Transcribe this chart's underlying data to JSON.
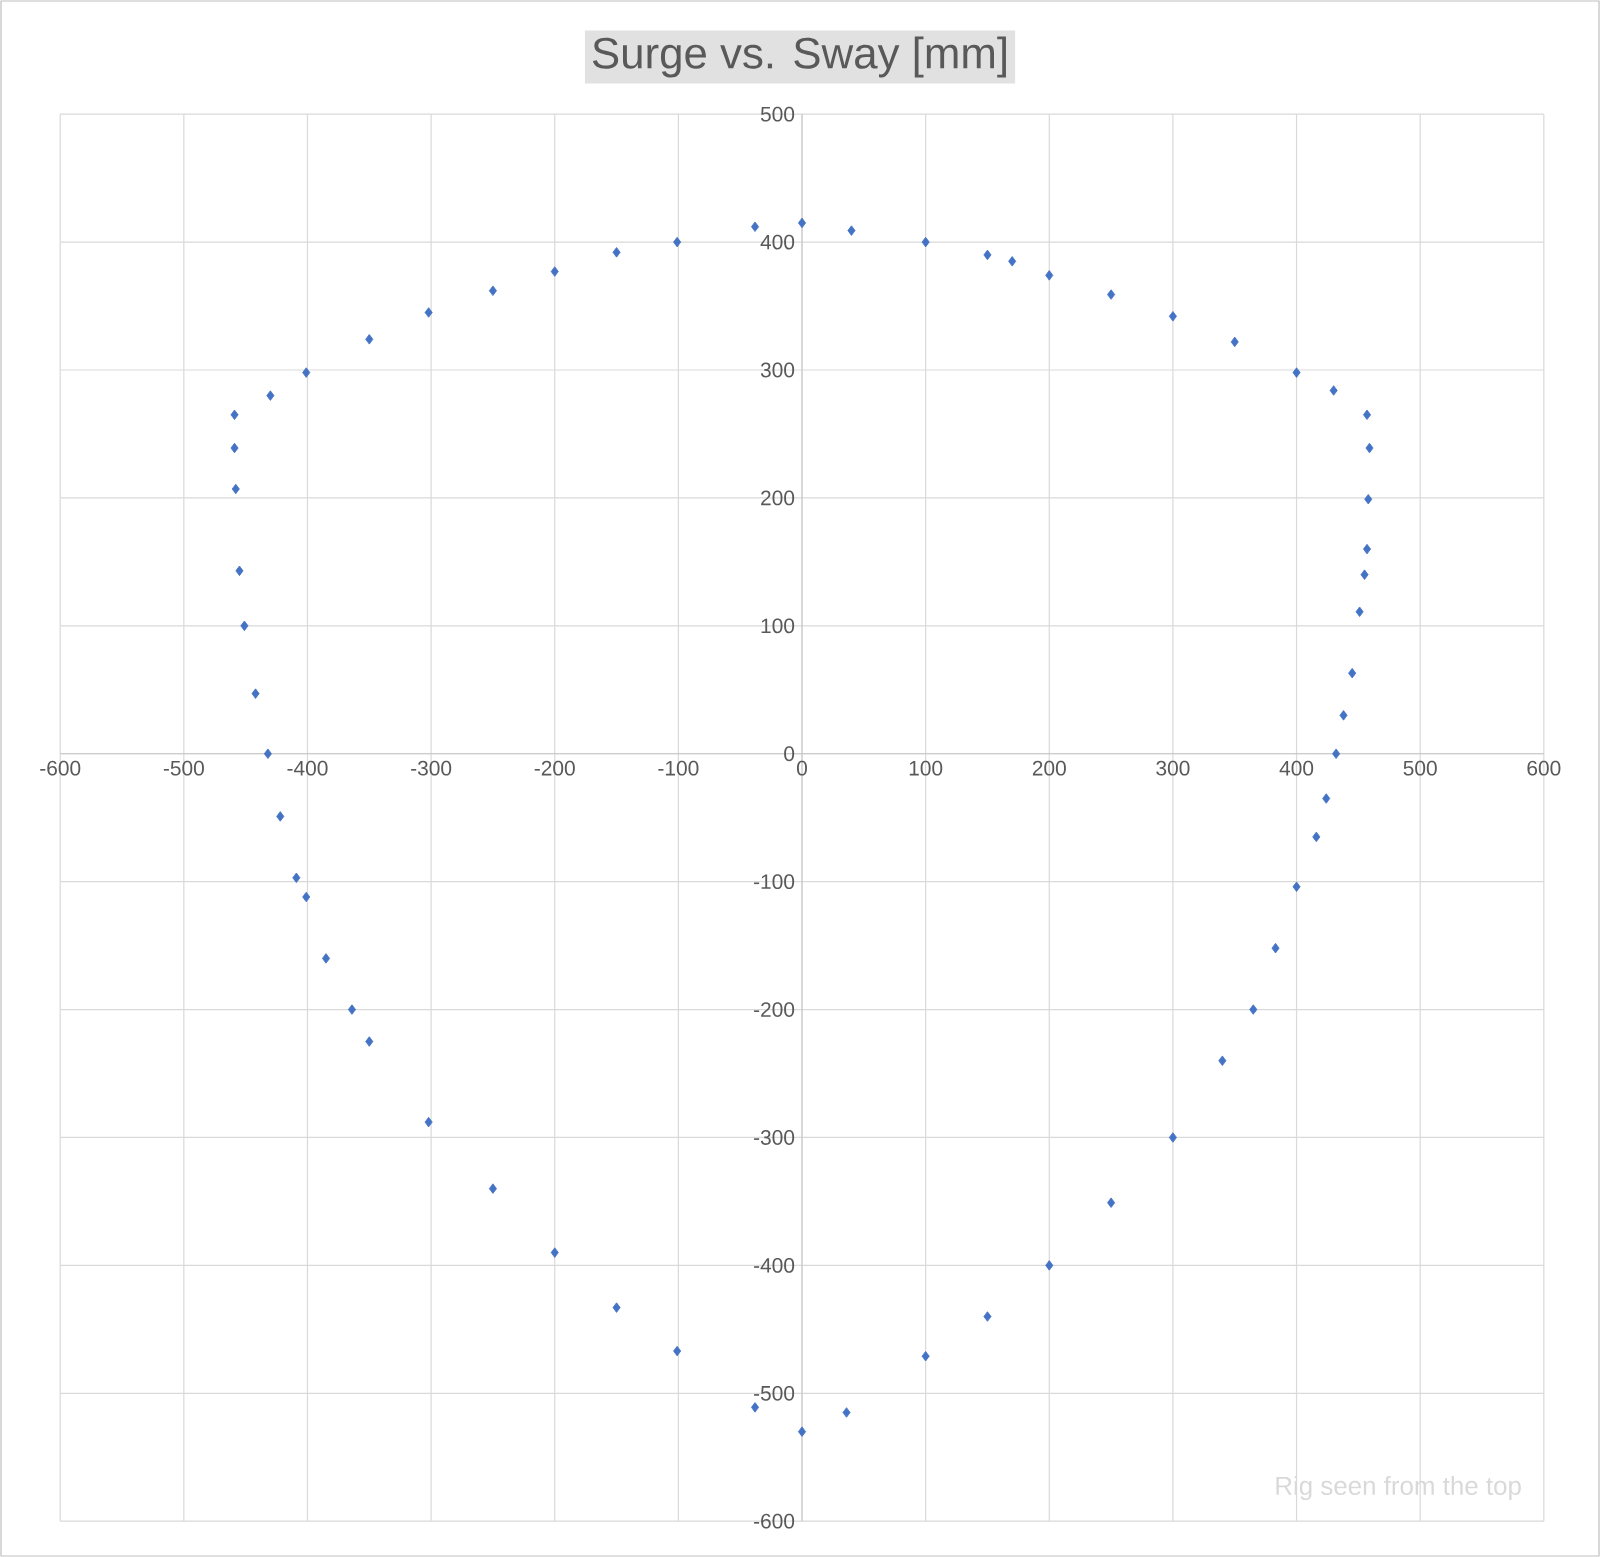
{
  "chart_data": {
    "type": "scatter",
    "title": "Surge vs. Sway [mm]",
    "x": [
      0,
      40,
      100,
      150,
      170,
      200,
      250,
      300,
      350,
      400,
      430,
      457,
      459,
      458,
      457,
      455,
      451,
      445,
      438,
      432,
      424,
      416,
      400,
      383,
      365,
      340,
      300,
      250,
      200,
      150,
      100,
      36,
      0,
      -38,
      -101,
      -150,
      -200,
      -250,
      -302,
      -350,
      -364,
      -385,
      -401,
      -409,
      -422,
      -432,
      -442,
      -451,
      -455,
      -458,
      -459,
      -459,
      -430,
      -401,
      -350,
      -302,
      -250,
      -200,
      -150,
      -101,
      -38
    ],
    "series": [
      {
        "color": "#4472c4",
        "values": [
          415,
          409,
          400,
          390,
          385,
          374,
          359,
          342,
          322,
          298,
          284,
          265,
          239,
          199,
          160,
          140,
          111,
          63,
          30,
          0,
          -35,
          -65,
          -104,
          -152,
          -200,
          -240,
          -300,
          -351,
          -400,
          -440,
          -471,
          -515,
          -530,
          -511,
          -467,
          -433,
          -390,
          -340,
          -288,
          -225,
          -200,
          -160,
          -112,
          -97,
          -49,
          0,
          47,
          100,
          143,
          207,
          239,
          265,
          280,
          298,
          324,
          345,
          362,
          377,
          392,
          400,
          412
        ]
      }
    ],
    "xlim": [
      -600,
      600
    ],
    "ylim": [
      -600,
      500
    ],
    "xticks": [
      -600,
      -500,
      -400,
      -300,
      -200,
      -100,
      0,
      100,
      200,
      300,
      400,
      500,
      600
    ],
    "yticks": [
      -600,
      -500,
      -400,
      -300,
      -200,
      -100,
      0,
      100,
      200,
      300,
      400,
      500
    ],
    "grid": true,
    "marker": "diamond",
    "annotations": [
      "Rig seen from the top"
    ]
  }
}
